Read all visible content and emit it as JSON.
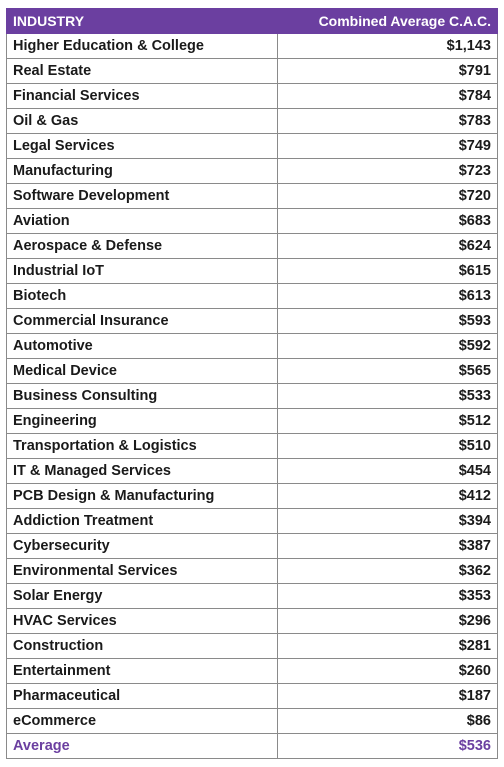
{
  "header": {
    "col1": "INDUSTRY",
    "col2": "Combined Average C.A.C."
  },
  "rows": [
    {
      "industry": "Higher Education & College",
      "value": "$1,143"
    },
    {
      "industry": "Real Estate",
      "value": "$791"
    },
    {
      "industry": "Financial Services",
      "value": "$784"
    },
    {
      "industry": "Oil & Gas",
      "value": "$783"
    },
    {
      "industry": "Legal Services",
      "value": "$749"
    },
    {
      "industry": "Manufacturing",
      "value": "$723"
    },
    {
      "industry": "Software Development",
      "value": "$720"
    },
    {
      "industry": "Aviation",
      "value": "$683"
    },
    {
      "industry": "Aerospace & Defense",
      "value": "$624"
    },
    {
      "industry": "Industrial IoT",
      "value": "$615"
    },
    {
      "industry": "Biotech",
      "value": "$613"
    },
    {
      "industry": "Commercial Insurance",
      "value": "$593"
    },
    {
      "industry": "Automotive",
      "value": "$592"
    },
    {
      "industry": "Medical Device",
      "value": "$565"
    },
    {
      "industry": "Business Consulting",
      "value": "$533"
    },
    {
      "industry": "Engineering",
      "value": "$512"
    },
    {
      "industry": "Transportation & Logistics",
      "value": "$510"
    },
    {
      "industry": "IT & Managed Services",
      "value": "$454"
    },
    {
      "industry": "PCB Design & Manufacturing",
      "value": "$412"
    },
    {
      "industry": "Addiction Treatment",
      "value": "$394"
    },
    {
      "industry": "Cybersecurity",
      "value": "$387"
    },
    {
      "industry": "Environmental Services",
      "value": "$362"
    },
    {
      "industry": "Solar Energy",
      "value": "$353"
    },
    {
      "industry": "HVAC Services",
      "value": "$296"
    },
    {
      "industry": "Construction",
      "value": "$281"
    },
    {
      "industry": "Entertainment",
      "value": "$260"
    },
    {
      "industry": "Pharmaceutical",
      "value": "$187"
    },
    {
      "industry": "eCommerce",
      "value": "$86"
    }
  ],
  "average": {
    "label": "Average",
    "value": "$536"
  },
  "colors": {
    "header_bg": "#6b3fa0",
    "header_text": "#ffffff",
    "average_text": "#6b3fa0",
    "border": "#8a8a8a"
  }
}
